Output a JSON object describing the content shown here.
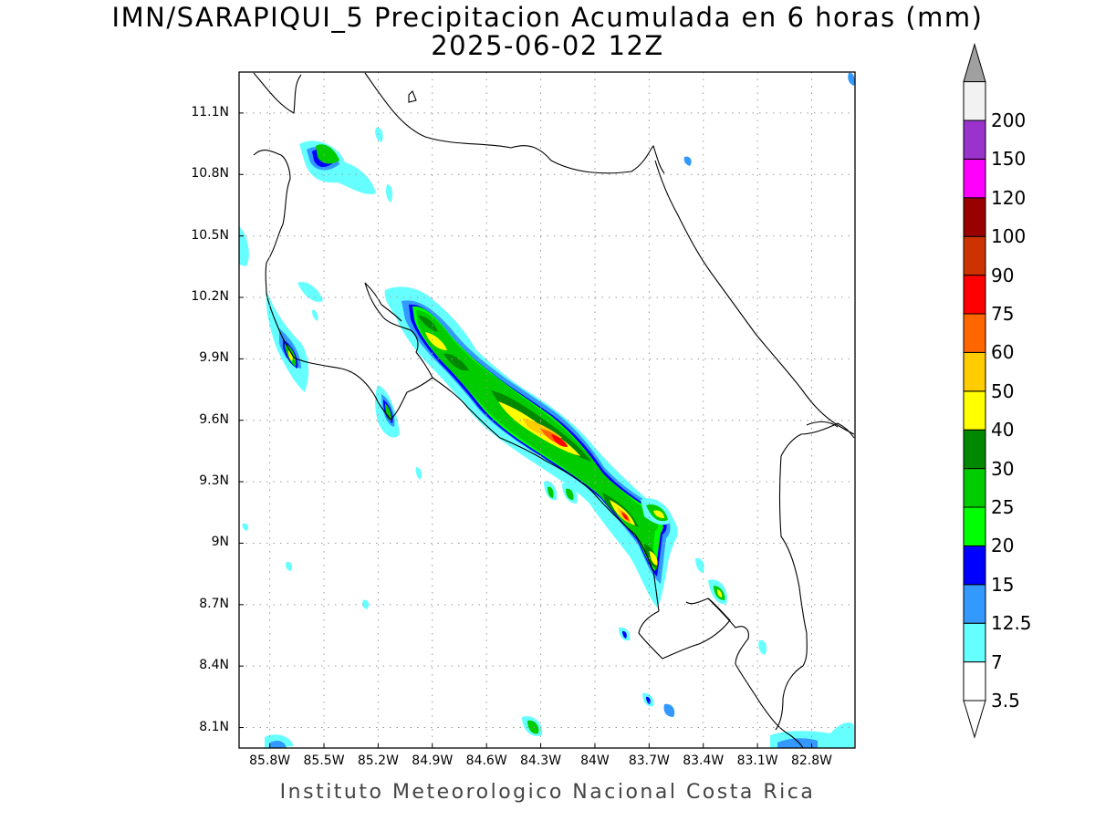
{
  "title": "IMN/SARAPIQUI_5 Precipitacion Acumulada en 6 horas (mm)",
  "subtitle": "2025-06-02 12Z",
  "credit": "Instituto Meteorologico Nacional Costa Rica",
  "map": {
    "region": "Costa Rica",
    "lon_range": [
      -85.97,
      -82.56
    ],
    "lat_range": [
      8.0,
      11.3
    ],
    "grid": true
  },
  "lat_ticks": [
    {
      "value": 11.1,
      "label": "11.1N"
    },
    {
      "value": 10.8,
      "label": "10.8N"
    },
    {
      "value": 10.5,
      "label": "10.5N"
    },
    {
      "value": 10.2,
      "label": "10.2N"
    },
    {
      "value": 9.9,
      "label": "9.9N"
    },
    {
      "value": 9.6,
      "label": "9.6N"
    },
    {
      "value": 9.3,
      "label": "9.3N"
    },
    {
      "value": 9.0,
      "label": "9N"
    },
    {
      "value": 8.7,
      "label": "8.7N"
    },
    {
      "value": 8.4,
      "label": "8.4N"
    },
    {
      "value": 8.1,
      "label": "8.1N"
    }
  ],
  "lon_ticks": [
    {
      "value": -85.8,
      "label": "85.8W"
    },
    {
      "value": -85.5,
      "label": "85.5W"
    },
    {
      "value": -85.2,
      "label": "85.2W"
    },
    {
      "value": -84.9,
      "label": "84.9W"
    },
    {
      "value": -84.6,
      "label": "84.6W"
    },
    {
      "value": -84.3,
      "label": "84.3W"
    },
    {
      "value": -84.0,
      "label": "84W"
    },
    {
      "value": -83.7,
      "label": "83.7W"
    },
    {
      "value": -83.4,
      "label": "83.4W"
    },
    {
      "value": -83.1,
      "label": "83.1W"
    },
    {
      "value": -82.8,
      "label": "82.8W"
    }
  ],
  "colorbar": {
    "levels": [
      {
        "label": "3.5",
        "color": "#ffffff"
      },
      {
        "label": "7",
        "color": "#66ffff"
      },
      {
        "label": "12.5",
        "color": "#3399ff"
      },
      {
        "label": "15",
        "color": "#0000ff"
      },
      {
        "label": "20",
        "color": "#00ff00"
      },
      {
        "label": "25",
        "color": "#00cc00"
      },
      {
        "label": "30",
        "color": "#008800"
      },
      {
        "label": "40",
        "color": "#ffff00"
      },
      {
        "label": "50",
        "color": "#ffcc00"
      },
      {
        "label": "60",
        "color": "#ff6600"
      },
      {
        "label": "75",
        "color": "#ff0000"
      },
      {
        "label": "90",
        "color": "#cc3300"
      },
      {
        "label": "100",
        "color": "#990000"
      },
      {
        "label": "120",
        "color": "#ff00ff"
      },
      {
        "label": "150",
        "color": "#9933cc"
      },
      {
        "label": "200",
        "color": "#f2f2f2"
      }
    ],
    "over_color": "#a0a0a0",
    "under_color": "#ffffff"
  }
}
